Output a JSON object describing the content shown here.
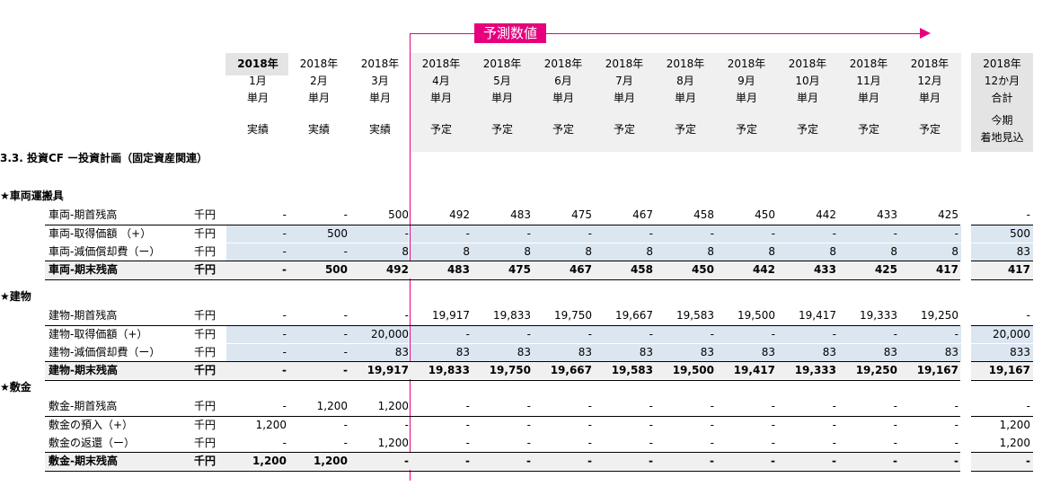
{
  "forecast_label": "予測数値",
  "section_title": "3.3. 投資CF ー投資計画（固定資産関連）",
  "columns": [
    {
      "year": "2018年",
      "month": "1月",
      "kind": "単月",
      "status": "実績",
      "bold": true
    },
    {
      "year": "2018年",
      "month": "2月",
      "kind": "単月",
      "status": "実績"
    },
    {
      "year": "2018年",
      "month": "3月",
      "kind": "単月",
      "status": "実績"
    },
    {
      "year": "2018年",
      "month": "4月",
      "kind": "単月",
      "status": "予定"
    },
    {
      "year": "2018年",
      "month": "5月",
      "kind": "単月",
      "status": "予定"
    },
    {
      "year": "2018年",
      "month": "6月",
      "kind": "単月",
      "status": "予定"
    },
    {
      "year": "2018年",
      "month": "7月",
      "kind": "単月",
      "status": "予定"
    },
    {
      "year": "2018年",
      "month": "8月",
      "kind": "単月",
      "status": "予定"
    },
    {
      "year": "2018年",
      "month": "9月",
      "kind": "単月",
      "status": "予定"
    },
    {
      "year": "2018年",
      "month": "10月",
      "kind": "単月",
      "status": "予定"
    },
    {
      "year": "2018年",
      "month": "11月",
      "kind": "単月",
      "status": "予定"
    },
    {
      "year": "2018年",
      "month": "12月",
      "kind": "単月",
      "status": "予定"
    }
  ],
  "total_column": {
    "year": "2018年",
    "month": "12か月",
    "kind": "合計",
    "status1": "今期",
    "status2": "着地見込"
  },
  "groups": [
    {
      "title": "★車両運搬具",
      "rows": [
        {
          "label": "車両-期首残高",
          "unit": "千円",
          "type": "open",
          "values": [
            "-",
            "-",
            "500",
            "492",
            "483",
            "475",
            "467",
            "458",
            "450",
            "442",
            "433",
            "425"
          ],
          "total": "-"
        },
        {
          "label": "車両-取得価額 （+）",
          "unit": "千円",
          "type": "band",
          "values": [
            "-",
            "500",
            "-",
            "-",
            "-",
            "-",
            "-",
            "-",
            "-",
            "-",
            "-",
            "-"
          ],
          "total": "500"
        },
        {
          "label": "車両-減価償却費（ー）",
          "unit": "千円",
          "type": "band",
          "values": [
            "-",
            "-",
            "8",
            "8",
            "8",
            "8",
            "8",
            "8",
            "8",
            "8",
            "8",
            "8"
          ],
          "total": "83"
        },
        {
          "label": "車両-期末残高",
          "unit": "千円",
          "type": "close",
          "values": [
            "-",
            "500",
            "492",
            "483",
            "475",
            "467",
            "458",
            "450",
            "442",
            "433",
            "425",
            "417"
          ],
          "total": "417"
        }
      ]
    },
    {
      "title": "★建物",
      "rows": [
        {
          "label": "建物-期首残高",
          "unit": "千円",
          "type": "open",
          "values": [
            "-",
            "-",
            "-",
            "19,917",
            "19,833",
            "19,750",
            "19,667",
            "19,583",
            "19,500",
            "19,417",
            "19,333",
            "19,250"
          ],
          "total": "-"
        },
        {
          "label": "建物-取得価額（+）",
          "unit": "千円",
          "type": "band",
          "values": [
            "-",
            "-",
            "20,000",
            "-",
            "-",
            "-",
            "-",
            "-",
            "-",
            "-",
            "-",
            "-"
          ],
          "total": "20,000"
        },
        {
          "label": "建物-減価償却費（ー）",
          "unit": "千円",
          "type": "band",
          "values": [
            "-",
            "-",
            "83",
            "83",
            "83",
            "83",
            "83",
            "83",
            "83",
            "83",
            "83",
            "83"
          ],
          "total": "833"
        },
        {
          "label": "建物-期末残高",
          "unit": "千円",
          "type": "close",
          "values": [
            "-",
            "-",
            "19,917",
            "19,833",
            "19,750",
            "19,667",
            "19,583",
            "19,500",
            "19,417",
            "19,333",
            "19,250",
            "19,167"
          ],
          "total": "19,167"
        }
      ]
    },
    {
      "title": "★敷金",
      "rows": [
        {
          "label": "敷金-期首残高",
          "unit": "千円",
          "type": "open",
          "values": [
            "-",
            "1,200",
            "1,200",
            "-",
            "-",
            "-",
            "-",
            "-",
            "-",
            "-",
            "-",
            "-"
          ],
          "total": "-"
        },
        {
          "label": "敷金の預入（+）",
          "unit": "千円",
          "type": "plain",
          "values": [
            "1,200",
            "-",
            "-",
            "-",
            "-",
            "-",
            "-",
            "-",
            "-",
            "-",
            "-",
            "-"
          ],
          "total": "1,200"
        },
        {
          "label": "敷金の返還（ー）",
          "unit": "千円",
          "type": "plain",
          "values": [
            "-",
            "-",
            "1,200",
            "-",
            "-",
            "-",
            "-",
            "-",
            "-",
            "-",
            "-",
            "-"
          ],
          "total": "1,200"
        },
        {
          "label": "敷金-期末残高",
          "unit": "千円",
          "type": "close",
          "values": [
            "1,200",
            "1,200",
            "-",
            "-",
            "-",
            "-",
            "-",
            "-",
            "-",
            "-",
            "-",
            "-"
          ],
          "total": "-"
        }
      ]
    }
  ],
  "colors": {
    "accent": "#e6007e",
    "band": "#dce6f1",
    "header_grey": "#e4e4e4",
    "light_grey": "#f0f0f0"
  }
}
